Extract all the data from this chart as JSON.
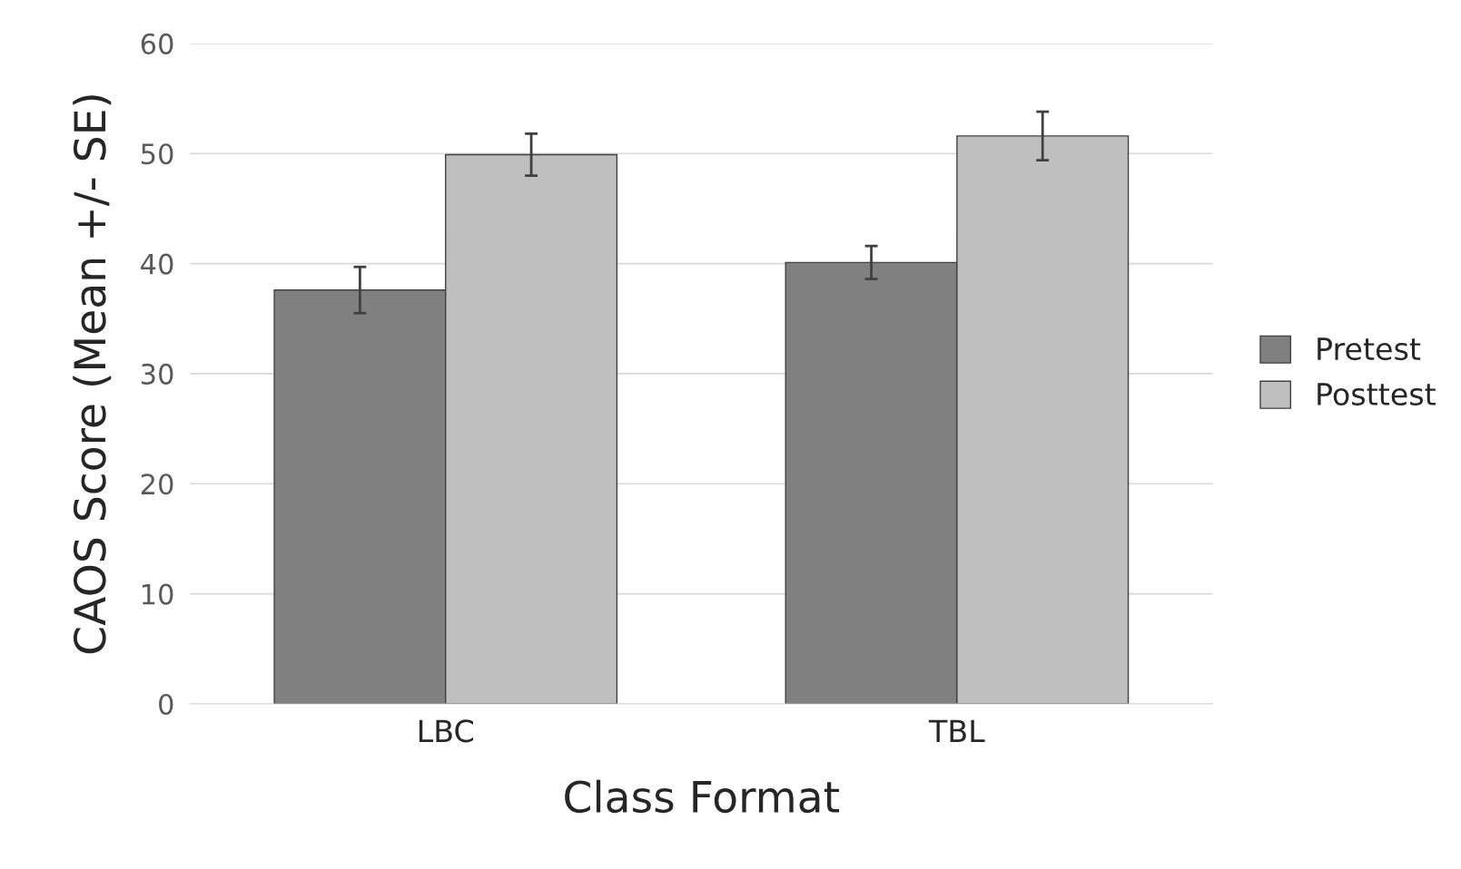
{
  "chart_data": {
    "type": "bar",
    "xlabel": "Class Format",
    "ylabel": "CAOS Score (Mean +/- SE)",
    "categories": [
      "LBC",
      "TBL"
    ],
    "series": [
      {
        "name": "Pretest",
        "color": "#808080",
        "values": [
          37.6,
          40.1
        ],
        "errors": [
          2.1,
          1.5
        ]
      },
      {
        "name": "Posttest",
        "color": "#bfbfbf",
        "values": [
          49.9,
          51.6
        ],
        "errors": [
          1.9,
          2.2
        ]
      }
    ],
    "ylim": [
      0,
      60
    ],
    "yticks": [
      0,
      10,
      20,
      30,
      40,
      50,
      60
    ],
    "grid": "y",
    "legend": "right"
  }
}
